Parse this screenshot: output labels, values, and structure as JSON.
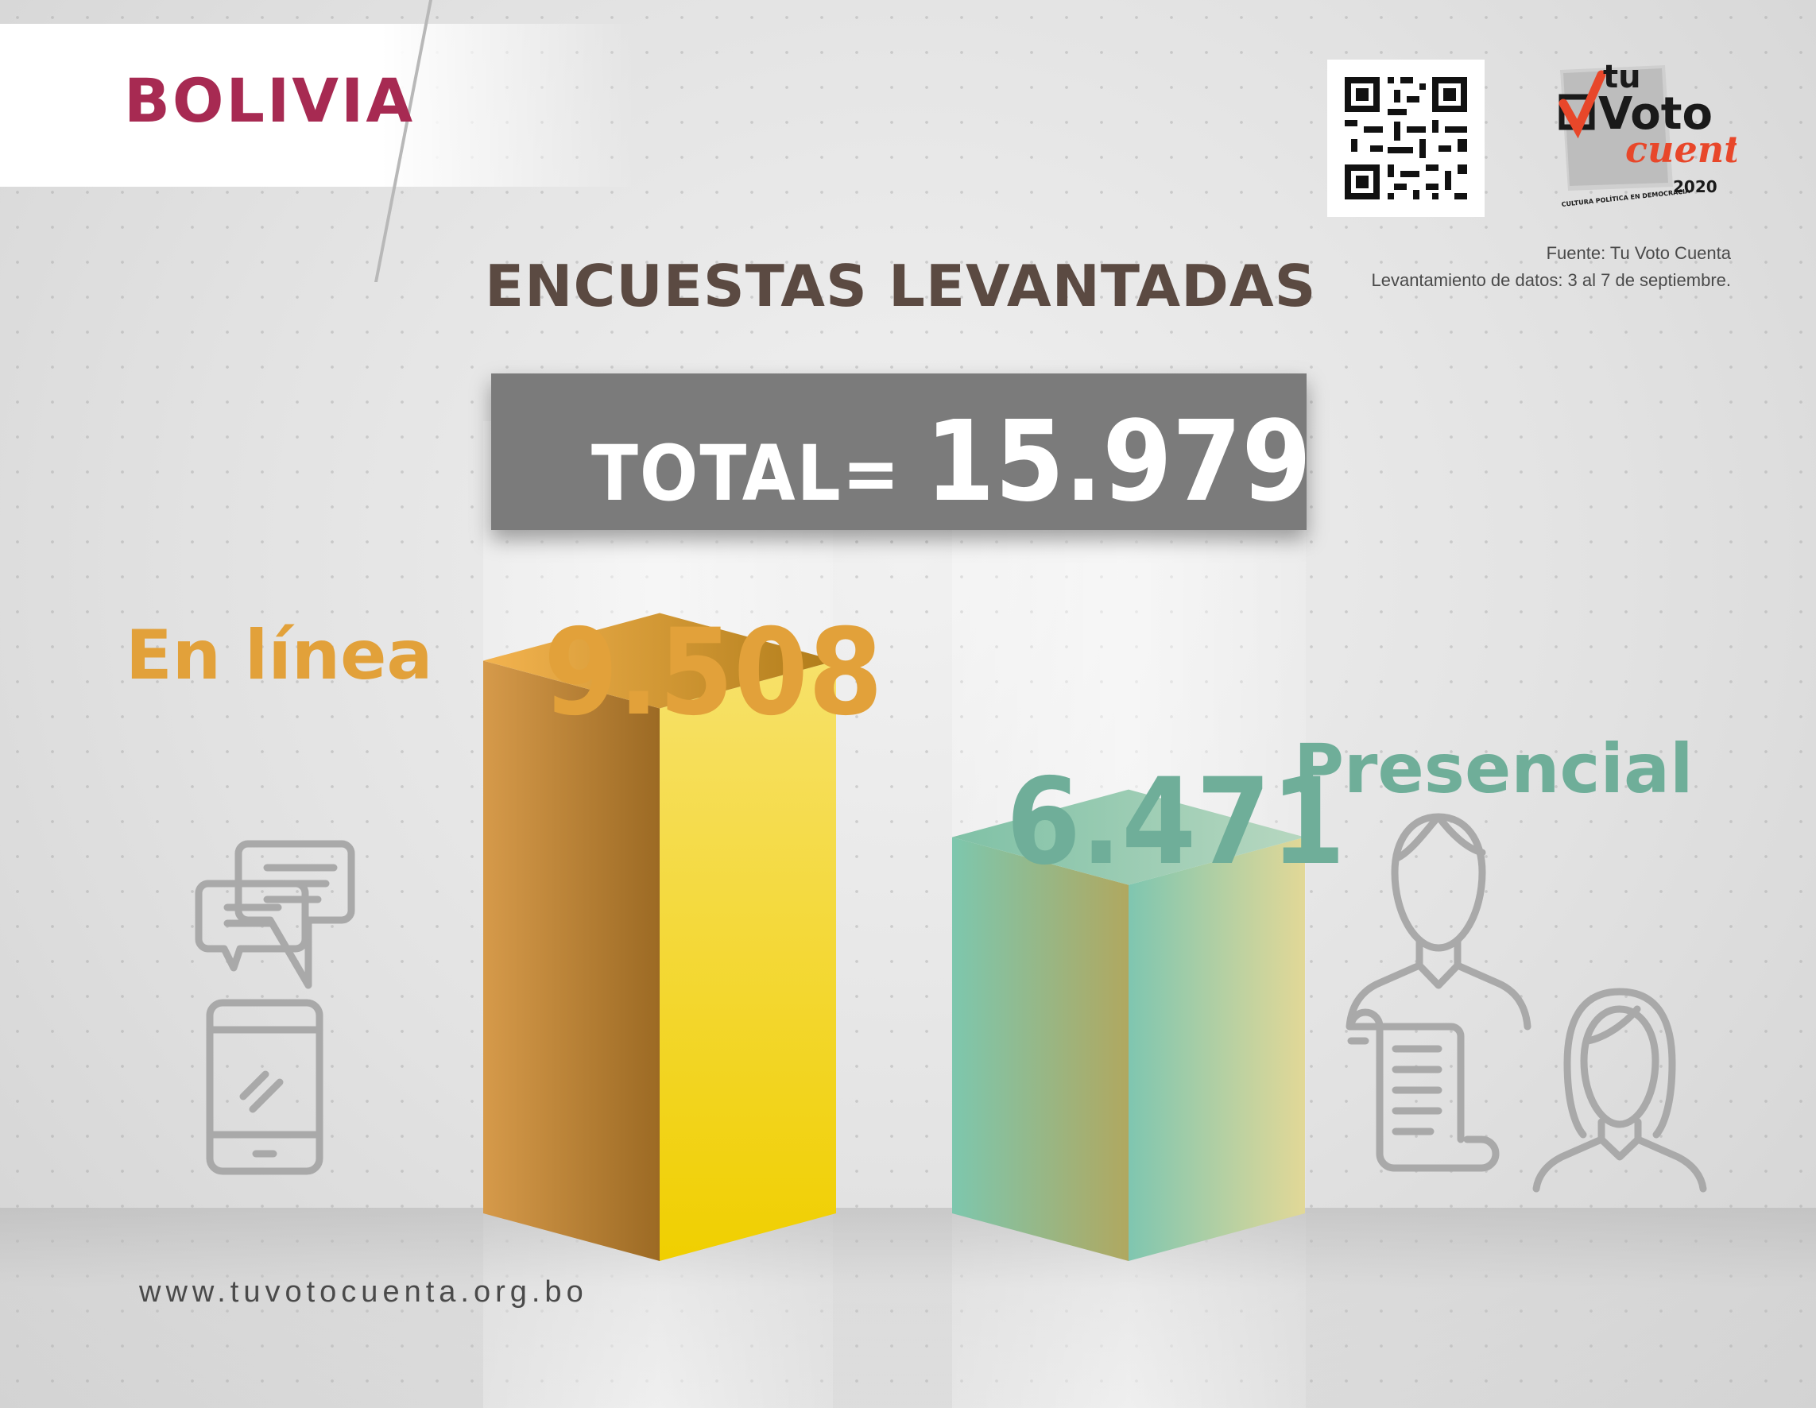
{
  "header": {
    "country": "BOLIVIA",
    "title": "ENCUESTAS LEVANTADAS",
    "source_line1": "Fuente: Tu Voto Cuenta",
    "source_line2": "Levantamiento de datos: 3 al 7 de septiembre."
  },
  "total": {
    "label": "TOTAL=",
    "value": "15.979"
  },
  "logo": {
    "line1": "tu",
    "line2": "Voto",
    "line3": "cuenta",
    "year": "2020",
    "tagline": "CULTURA POLÍTICA EN DEMOCRACIA"
  },
  "footer": {
    "url": "www.tuvotocuenta.org.bo"
  },
  "icons": {
    "online": [
      "chat-bubbles-icon",
      "smartphone-icon"
    ],
    "in_person": [
      "man-icon",
      "woman-icon",
      "document-scroll-icon"
    ],
    "qr": "qr-code-icon"
  },
  "colors": {
    "online": "#e2a13a",
    "in_person": "#6fae99",
    "country": "#a72a52",
    "title": "#5b4a42",
    "total_box": "#7b7b7b"
  },
  "chart_data": {
    "type": "bar",
    "categories": [
      "En línea",
      "Presencial"
    ],
    "values": [
      9508,
      6471
    ],
    "value_labels": [
      "9.508",
      "6.471"
    ],
    "title": "ENCUESTAS LEVANTADAS",
    "total": 15979,
    "grid": false
  }
}
